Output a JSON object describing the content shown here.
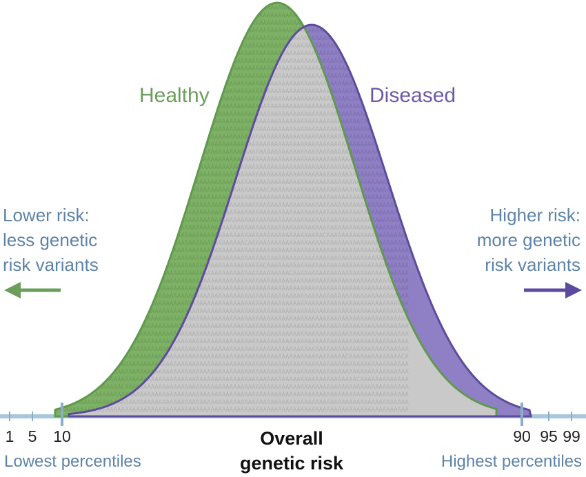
{
  "labels": {
    "healthy": "Healthy",
    "diseased": "Diseased"
  },
  "left_note": {
    "line1": "Lower risk:",
    "line2": "less genetic",
    "line3": "risk variants"
  },
  "right_note": {
    "line1": "Higher risk:",
    "line2": "more genetic",
    "line3": "risk variants"
  },
  "axis": {
    "title_line1": "Overall",
    "title_line2": "genetic risk",
    "ticks": [
      "1",
      "5",
      "10",
      "90",
      "95",
      "99"
    ],
    "lowest": "Lowest percentiles",
    "highest": "Highest percentiles"
  },
  "colors": {
    "healthy": "#7db165",
    "healthy_edge": "#5f9a4c",
    "diseased": "#8f7fc4",
    "diseased_edge": "#5d4b9e",
    "overlap": "#c9c9c9",
    "overlap_edge": "#6e6e6e",
    "axis": "#a9c7db",
    "note": "#5e83a8",
    "arrow_left": "#6a9e5a",
    "arrow_right": "#5b4aa0"
  }
}
